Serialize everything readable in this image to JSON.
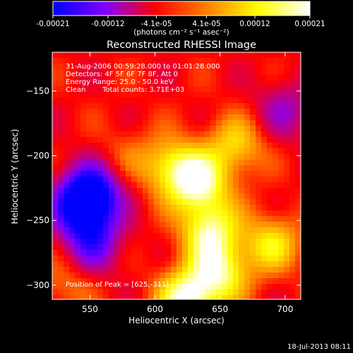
{
  "chart_data": {
    "type": "heatmap",
    "title": "Reconstructed RHESSI Image",
    "xlabel": "Heliocentric X (arcsec)",
    "ylabel": "Heliocentric Y (arcsec)",
    "xlim": [
      521,
      712
    ],
    "ylim": [
      -311,
      -120
    ],
    "x_ticks": [
      550,
      600,
      650,
      700
    ],
    "y_ticks": [
      -150,
      -200,
      -250,
      -300
    ],
    "colorbar": {
      "ticks": [
        -0.00021,
        -0.00012,
        -4.1e-05,
        4.1e-05,
        0.00012,
        0.00021
      ],
      "tick_labels": [
        "-0.00021",
        "-0.00012",
        "-4.1e-05",
        "4.1e-05",
        "0.00012",
        "0.00021"
      ],
      "range": [
        -0.00021,
        0.00021
      ],
      "units": "(photons cm⁻² s⁻¹ asec⁻²)",
      "colors": [
        "#0000ff",
        "#7f00ff",
        "#ff0000",
        "#ff8000",
        "#ffff00",
        "#ffffff"
      ]
    },
    "annotations": {
      "time": "31-Aug-2006 00:59:28.000 to 01:01:28.000",
      "detectors": "Detectors: 4F 5F 6F 7F 8F, Att 0",
      "energy": "Energy Range: 25.0 - 50.0 keV",
      "method": "Clean",
      "counts": "Total counts: 3.71E+03",
      "peak": "Position of Peak = [625,-311]"
    },
    "features": [
      {
        "x": 545,
        "y": -240,
        "value": -0.00021
      },
      {
        "x": 552,
        "y": -226,
        "value": -0.00016
      },
      {
        "x": 552,
        "y": -268,
        "value": -0.00013
      },
      {
        "x": 575,
        "y": -200,
        "value": 4e-05
      },
      {
        "x": 612,
        "y": -208,
        "value": 0.00014
      },
      {
        "x": 634,
        "y": -222,
        "value": 0.00018
      },
      {
        "x": 642,
        "y": -258,
        "value": 0.00017
      },
      {
        "x": 650,
        "y": -290,
        "value": 0.00016
      },
      {
        "x": 625,
        "y": -311,
        "value": 0.00021
      },
      {
        "x": 662,
        "y": -192,
        "value": 0.00012
      },
      {
        "x": 690,
        "y": -268,
        "value": 0.00013
      },
      {
        "x": 700,
        "y": -165,
        "value": -9e-05
      },
      {
        "x": 530,
        "y": -300,
        "value": 6e-05
      }
    ]
  },
  "timestamp": "18-Jul-2013 08:11"
}
